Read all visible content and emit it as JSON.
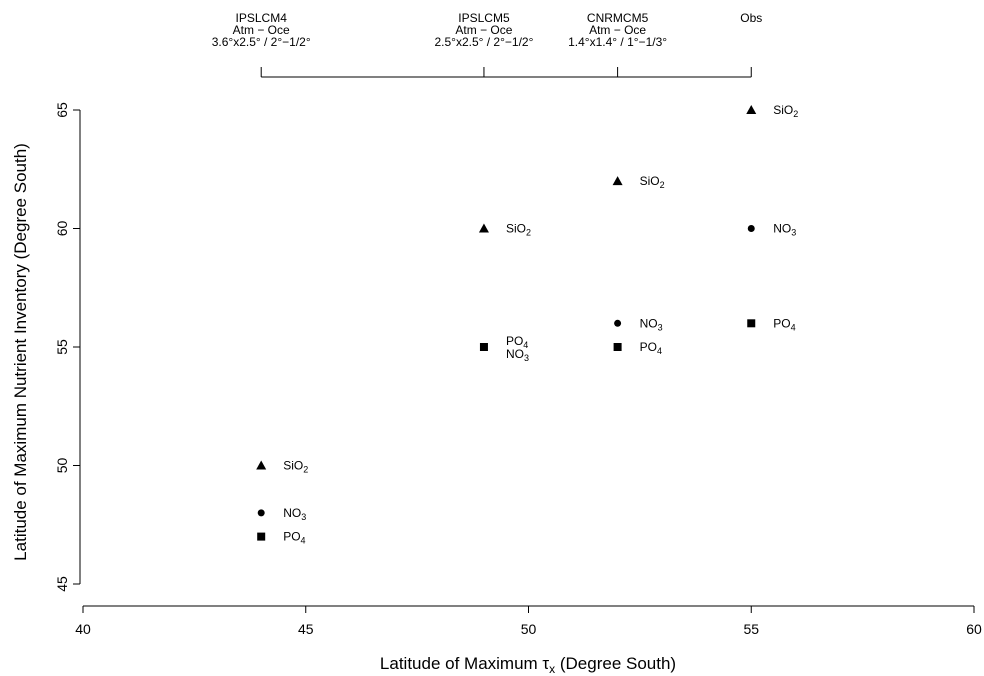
{
  "chart_data": {
    "type": "scatter",
    "xlabel": "Latitude of Maximum τx (Degree South)",
    "xlabel_parts": {
      "before": "Latitude of Maximum τ",
      "sub": "x",
      "after": " (Degree South)"
    },
    "ylabel": "Latitude of Maximum Nutrient Inventory (Degree South)",
    "xlim": [
      40,
      60
    ],
    "ylim": [
      44,
      66
    ],
    "x_ticks": [
      40,
      45,
      50,
      55,
      60
    ],
    "y_ticks": [
      45,
      50,
      55,
      60,
      65
    ],
    "grid": false,
    "marker_legend": {
      "SiO2": "triangle",
      "NO3": "circle",
      "PO4": "square"
    },
    "points": [
      {
        "x": 44,
        "y": 50,
        "marker": "triangle",
        "label_main": "SiO",
        "label_sub": "2"
      },
      {
        "x": 44,
        "y": 48,
        "marker": "circle",
        "label_main": "NO",
        "label_sub": "3"
      },
      {
        "x": 44,
        "y": 47,
        "marker": "square",
        "label_main": "PO",
        "label_sub": "4"
      },
      {
        "x": 49,
        "y": 60,
        "marker": "triangle",
        "label_main": "SiO",
        "label_sub": "2"
      },
      {
        "x": 49,
        "y": 55,
        "marker": "square",
        "label_main": "PO",
        "label_sub": "4",
        "label_dy": -0.3
      },
      {
        "x": 49,
        "y": 55,
        "marker": "circle",
        "label_main": "NO",
        "label_sub": "3",
        "label_dy": 0.35,
        "hidden_marker": true
      },
      {
        "x": 52,
        "y": 62,
        "marker": "triangle",
        "label_main": "SiO",
        "label_sub": "2"
      },
      {
        "x": 52,
        "y": 56,
        "marker": "circle",
        "label_main": "NO",
        "label_sub": "3"
      },
      {
        "x": 52,
        "y": 55,
        "marker": "square",
        "label_main": "PO",
        "label_sub": "4"
      },
      {
        "x": 55,
        "y": 65,
        "marker": "triangle",
        "label_main": "SiO",
        "label_sub": "2"
      },
      {
        "x": 55,
        "y": 60,
        "marker": "circle",
        "label_main": "NO",
        "label_sub": "3"
      },
      {
        "x": 55,
        "y": 56,
        "marker": "square",
        "label_main": "PO",
        "label_sub": "4"
      }
    ],
    "models": [
      {
        "x": 44,
        "lines": [
          "IPSLCM4",
          "Atm  −  Oce",
          "3.6°x2.5° / 2°−1/2°"
        ]
      },
      {
        "x": 49,
        "lines": [
          "IPSLCM5",
          "Atm  −  Oce",
          "2.5°x2.5° / 2°−1/2°"
        ]
      },
      {
        "x": 52,
        "lines": [
          "CNRMCM5",
          "Atm  −  Oce",
          "1.4°x1.4° / 1°−1/3°"
        ]
      },
      {
        "x": 55,
        "lines": [
          "Obs"
        ]
      }
    ]
  }
}
